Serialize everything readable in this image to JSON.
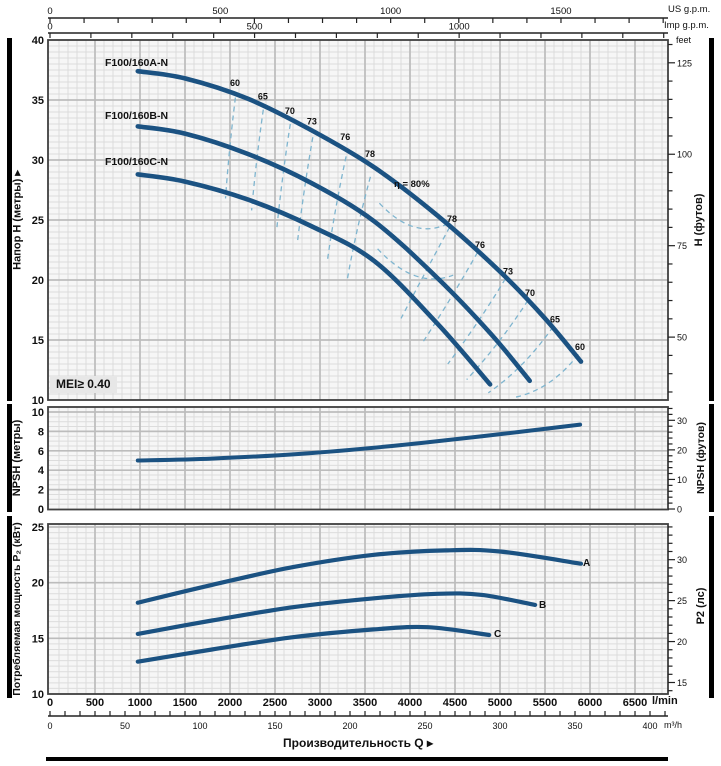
{
  "labels": {
    "mei": "MEI≥ 0.40",
    "q_title": "Производительность Q ▸"
  },
  "colors": {
    "curve": "#1b5282",
    "contour": "#7fb5cf",
    "grid_minor": "#dcdcdc",
    "grid_major": "#bcbcbc",
    "plot_bg": "#f6f6f6",
    "border": "#3f3f3f",
    "bracket": "#000000",
    "text": "#0f0f0f",
    "mei_bg": "#e7e7e7"
  },
  "axes": {
    "us_gpm": {
      "label": "US g.p.m.",
      "ticks": [
        0,
        500,
        1000,
        1500
      ],
      "minor_step_gpm": 100
    },
    "imp_gpm": {
      "label": "Imp g.p.m.",
      "ticks": [
        0,
        500,
        1000
      ],
      "minor_step_gpm": 100
    },
    "lmin": {
      "label": "l/min",
      "ticks": [
        0,
        500,
        1000,
        1500,
        2000,
        2500,
        3000,
        3500,
        4000,
        4500,
        5000,
        5500,
        6000,
        6500
      ],
      "minor_step": 100
    },
    "m3h": {
      "label": "m³/h",
      "ticks": [
        0,
        50,
        100,
        150,
        200,
        250,
        300,
        350,
        400
      ],
      "minor_step": 10
    },
    "head_left": {
      "title": "Напор H (метры) ▸",
      "ticks": [
        40,
        35,
        30,
        25,
        20,
        15,
        10
      ]
    },
    "head_right": {
      "title": "H (футов)",
      "unit_label": "feet",
      "ticks": [
        125,
        100,
        75,
        50
      ],
      "minor_step": 5
    },
    "npsh_left": {
      "title": "NPSH (метры)",
      "ticks": [
        10,
        8,
        6,
        4,
        2,
        0
      ]
    },
    "npsh_right": {
      "title": "NPSH (футов)",
      "ticks": [
        30,
        20,
        10,
        0
      ],
      "minor_step": 2
    },
    "power_left": {
      "title": "Потребляемая мощность P₂ (кВт)",
      "ticks": [
        25,
        20,
        15,
        10
      ]
    },
    "power_right": {
      "title": "P2 (лс)",
      "ticks": [
        30,
        25,
        20,
        15
      ],
      "minor_step": 1
    }
  },
  "chart_data": [
    {
      "type": "line",
      "id": "head",
      "xlabel": "Q",
      "x_unit": "l/min",
      "xlim": [
        0,
        6850
      ],
      "ylabel": "Напор H",
      "y_unit": "м",
      "ylim": [
        10,
        40
      ],
      "grid": true,
      "series": [
        {
          "name": "F100/160A-N",
          "points": [
            [
              975,
              37.4
            ],
            [
              1500,
              36.8
            ],
            [
              2200,
              35.1
            ],
            [
              2900,
              32.5
            ],
            [
              3600,
              29.4
            ],
            [
              4300,
              25.4
            ],
            [
              5000,
              20.7
            ],
            [
              5500,
              16.8
            ],
            [
              5900,
              13.2
            ]
          ]
        },
        {
          "name": "F100/160B-N",
          "points": [
            [
              975,
              32.8
            ],
            [
              1500,
              32.2
            ],
            [
              2200,
              30.5
            ],
            [
              2900,
              28.1
            ],
            [
              3600,
              24.9
            ],
            [
              4300,
              20.2
            ],
            [
              4900,
              15.5
            ],
            [
              5330,
              11.6
            ]
          ]
        },
        {
          "name": "F100/160C-N",
          "points": [
            [
              975,
              28.8
            ],
            [
              1500,
              28.2
            ],
            [
              2200,
              26.7
            ],
            [
              2900,
              24.5
            ],
            [
              3600,
              21.6
            ],
            [
              4300,
              16.4
            ],
            [
              4890,
              11.3
            ]
          ]
        }
      ],
      "efficiency_contours": {
        "eta_label": {
          "text": "η = 80%",
          "q": 4000,
          "h": 27.9
        },
        "left": [
          {
            "label": "60",
            "label_q": 2055,
            "label_h": 36.4,
            "path": [
              [
                2060,
                35.2
              ],
              [
                1990,
                31.0
              ],
              [
                1950,
                26.8
              ]
            ]
          },
          {
            "label": "65",
            "label_q": 2365,
            "label_h": 35.3,
            "path": [
              [
                2370,
                34.2
              ],
              [
                2290,
                30.0
              ],
              [
                2240,
                25.8
              ]
            ]
          },
          {
            "label": "70",
            "label_q": 2665,
            "label_h": 34.1,
            "path": [
              [
                2670,
                33.0
              ],
              [
                2580,
                28.7
              ],
              [
                2520,
                24.3
              ]
            ]
          },
          {
            "label": "73",
            "label_q": 2910,
            "label_h": 33.2,
            "path": [
              [
                2920,
                31.9
              ],
              [
                2820,
                27.6
              ],
              [
                2750,
                23.2
              ]
            ]
          },
          {
            "label": "76",
            "label_q": 3280,
            "label_h": 31.9,
            "path": [
              [
                3290,
                30.3
              ],
              [
                3160,
                25.8
              ],
              [
                3080,
                21.5
              ]
            ]
          },
          {
            "label": "78",
            "label_q": 3555,
            "label_h": 30.5,
            "path": [
              [
                3560,
                28.6
              ],
              [
                3400,
                24.2
              ],
              [
                3300,
                19.9
              ]
            ]
          }
        ],
        "right": [
          {
            "label": "78",
            "label_q": 4467,
            "label_h": 25.1,
            "path": [
              [
                4440,
                24.4
              ],
              [
                4180,
                20.8
              ],
              [
                3900,
                16.8
              ]
            ]
          },
          {
            "label": "76",
            "label_q": 4778,
            "label_h": 22.9,
            "path": [
              [
                4750,
                22.3
              ],
              [
                4480,
                18.7
              ],
              [
                4150,
                14.9
              ]
            ]
          },
          {
            "label": "73",
            "label_q": 5089,
            "label_h": 20.7,
            "path": [
              [
                5060,
                20.1
              ],
              [
                4760,
                16.4
              ],
              [
                4420,
                13.0
              ]
            ]
          },
          {
            "label": "70",
            "label_q": 5333,
            "label_h": 18.9,
            "path": [
              [
                5310,
                18.3
              ],
              [
                5000,
                14.7
              ],
              [
                4630,
                11.7
              ]
            ]
          },
          {
            "label": "65",
            "label_q": 5611,
            "label_h": 16.7,
            "path": [
              [
                5590,
                16.1
              ],
              [
                5260,
                12.6
              ],
              [
                4870,
                10.6
              ]
            ]
          },
          {
            "label": "60",
            "label_q": 5889,
            "label_h": 14.4,
            "path": [
              [
                5870,
                13.8
              ],
              [
                5560,
                10.8
              ],
              [
                5150,
                10.2
              ]
            ]
          }
        ],
        "center_arcs": [
          [
            [
              3660,
              26.4
            ],
            [
              4060,
              23.2
            ],
            [
              4450,
              24.8
            ]
          ],
          [
            [
              3640,
              22.6
            ],
            [
              4060,
              19.2
            ],
            [
              4480,
              20.4
            ]
          ]
        ]
      }
    },
    {
      "type": "line",
      "id": "npsh",
      "xlabel": "Q",
      "x_unit": "l/min",
      "xlim": [
        0,
        6850
      ],
      "ylabel": "NPSH",
      "y_unit": "м",
      "ylim": [
        0,
        10
      ],
      "grid": true,
      "series": [
        {
          "name": "NPSH",
          "points": [
            [
              975,
              5.0
            ],
            [
              1800,
              5.2
            ],
            [
              2800,
              5.7
            ],
            [
              3800,
              6.5
            ],
            [
              4800,
              7.5
            ],
            [
              5890,
              8.7
            ]
          ]
        }
      ]
    },
    {
      "type": "line",
      "id": "power",
      "xlabel": "Q",
      "x_unit": "l/min",
      "xlim": [
        0,
        6850
      ],
      "ylabel": "Потребляемая мощность P2",
      "y_unit": "кВт",
      "ylim": [
        10,
        25
      ],
      "grid": true,
      "series": [
        {
          "name": "A",
          "points": [
            [
              975,
              18.2
            ],
            [
              1800,
              19.8
            ],
            [
              2700,
              21.4
            ],
            [
              3600,
              22.5
            ],
            [
              4400,
              22.9
            ],
            [
              5000,
              22.8
            ],
            [
              5900,
              21.7
            ]
          ]
        },
        {
          "name": "B",
          "points": [
            [
              975,
              15.4
            ],
            [
              1800,
              16.6
            ],
            [
              2700,
              17.8
            ],
            [
              3600,
              18.6
            ],
            [
              4300,
              19.0
            ],
            [
              4800,
              18.9
            ],
            [
              5390,
              18.0
            ]
          ]
        },
        {
          "name": "C",
          "points": [
            [
              975,
              12.9
            ],
            [
              1800,
              14.0
            ],
            [
              2700,
              15.1
            ],
            [
              3600,
              15.8
            ],
            [
              4200,
              16.0
            ],
            [
              4880,
              15.3
            ]
          ]
        }
      ]
    }
  ]
}
